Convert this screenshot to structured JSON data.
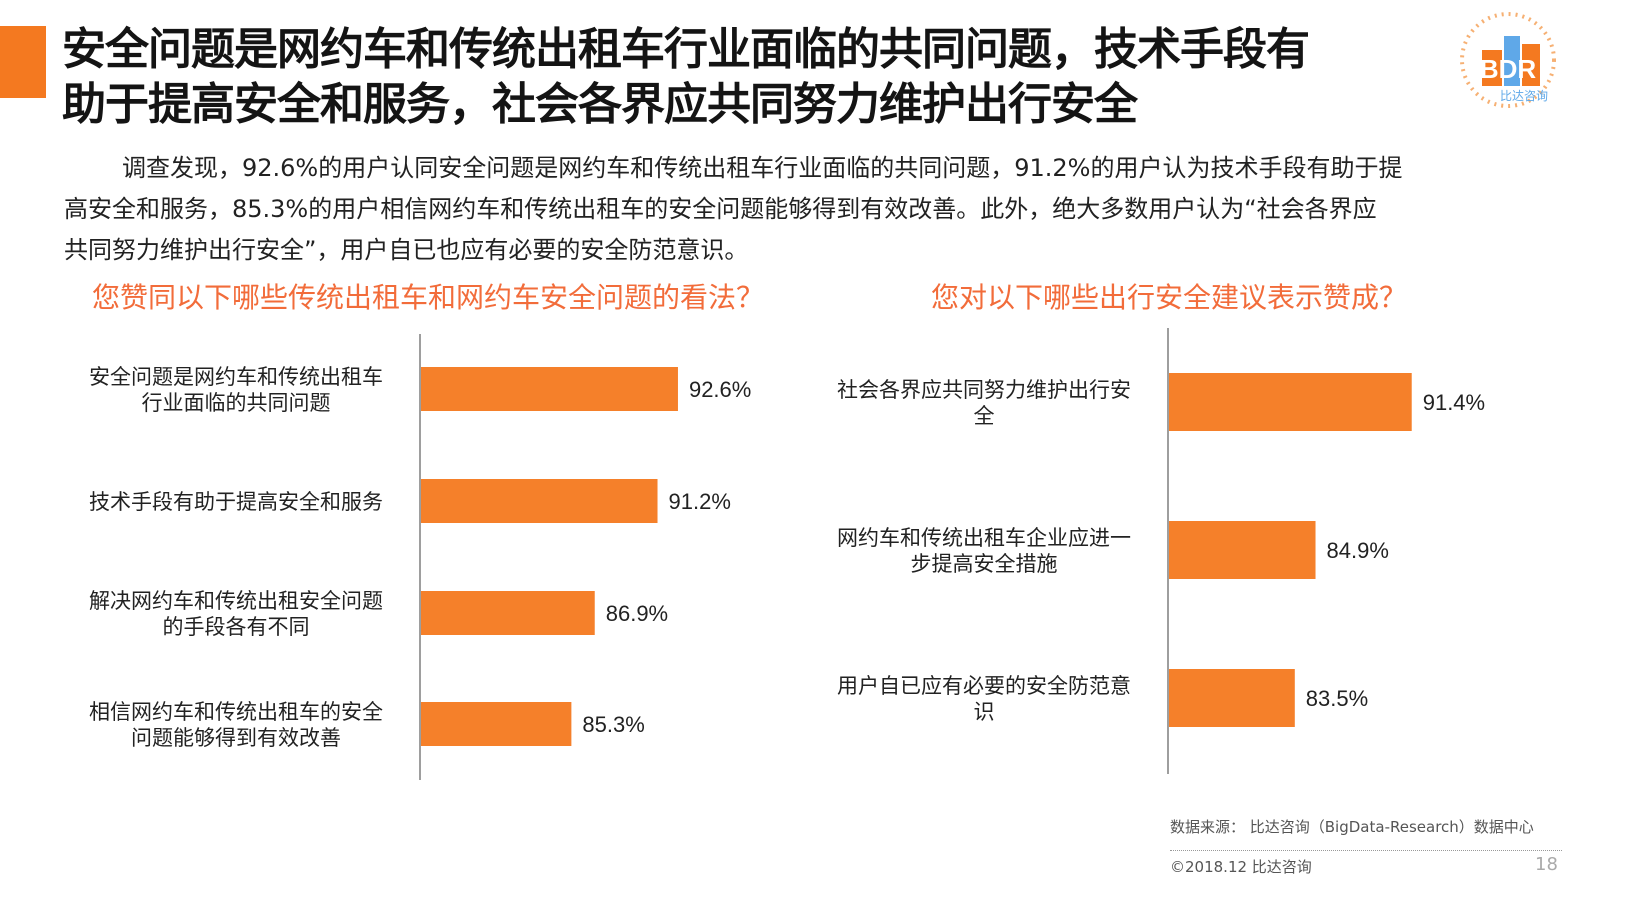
{
  "title": [
    "安全问题是网约车和传统出租车行业面临的共同问题，技术手段有",
    "助于提高安全和服务，社会各界应共同努力维护出行安全"
  ],
  "logo": {
    "text": "BDR",
    "subtext": "比达咨询"
  },
  "intro": [
    "调查发现，92.6%的用户认同安全问题是网约车和传统出租车行业面临的共同问题，91.2%的用户认为技术手段有助于提",
    "高安全和服务，85.3%的用户相信网约车和传统出租车的安全问题能够得到有效改善。此外，绝大多数用户认为“社会各界应",
    "共同努力维护出行安全”，用户自已也应有必要的安全防范意识。"
  ],
  "colors": {
    "accent": "#f47920",
    "bar": "#f5802a",
    "question": "#f26c3a",
    "axis": "#7f7f7f"
  },
  "chart_data": [
    {
      "type": "bar",
      "orientation": "horizontal",
      "title": "您赞同以下哪些传统出租车和网约车安全问题的看法？",
      "categories": [
        [
          "安全问题是网约车和传统出租车",
          "行业面临的共同问题"
        ],
        [
          "技术手段有助于提高安全和服务"
        ],
        [
          "解决网约车和传统出租安全问题",
          "的手段各有不同"
        ],
        [
          "相信网约车和传统出租车的安全",
          "问题能够得到有效改善"
        ]
      ],
      "values": [
        92.6,
        91.2,
        86.9,
        85.3
      ],
      "value_labels": [
        "92.6%",
        "91.2%",
        "86.9%",
        "85.3%"
      ],
      "grid": false
    },
    {
      "type": "bar",
      "orientation": "horizontal",
      "title": "您对以下哪些出行安全建议表示赞成？",
      "categories": [
        [
          "社会各界应共同努力维护出行安",
          "全"
        ],
        [
          "网约车和传统出租车企业应进一",
          "步提高安全措施"
        ],
        [
          "用户自已应有必要的安全防范意",
          "识"
        ]
      ],
      "values": [
        91.4,
        84.9,
        83.5
      ],
      "value_labels": [
        "91.4%",
        "84.9%",
        "83.5%"
      ],
      "grid": false
    }
  ],
  "footer": {
    "source": "数据来源： 比达咨询（BigData-Research）数据中心",
    "copyright": "©2018.12 比达咨询",
    "page": "18"
  }
}
